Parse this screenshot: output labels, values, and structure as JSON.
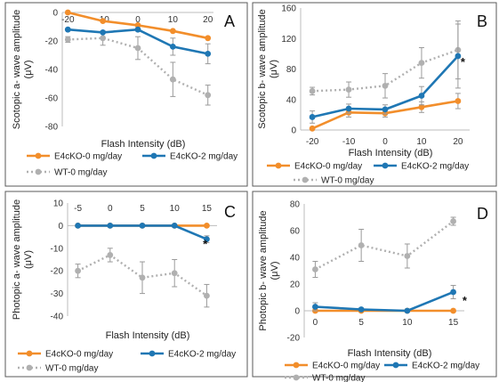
{
  "chart_data": [
    {
      "type": "line",
      "panel": "A",
      "xlabel": "Flash Intensity (dB)",
      "ylabel": "Scotopic a- wave amplitude (μV)",
      "x": [
        -20,
        -10,
        0,
        10,
        20
      ],
      "ylim": [
        -80,
        0
      ],
      "yticks": [
        0,
        -20,
        -40,
        -60,
        -80
      ],
      "xticks": [
        "-20",
        "-10",
        "0",
        "10",
        "20"
      ],
      "series": [
        {
          "name": "E4cKO-0 mg/day",
          "color": "#f28e2b",
          "style": "solid",
          "values": [
            0,
            -6,
            -9,
            -13,
            -18
          ],
          "errors": [
            0,
            0,
            0,
            0,
            0
          ]
        },
        {
          "name": "E4cKO-2 mg/day",
          "color": "#1f77b4",
          "style": "solid",
          "values": [
            -12,
            -14,
            -12,
            -24,
            -29
          ],
          "errors": [
            0,
            0,
            0,
            6,
            7
          ]
        },
        {
          "name": "WT-0 mg/day",
          "color": "#b0b0b0",
          "style": "dotted",
          "values": [
            -19,
            -18,
            -25,
            -47,
            -58
          ],
          "errors": [
            2,
            5,
            8,
            12,
            7
          ]
        }
      ],
      "markers": [],
      "legend": "bottom"
    },
    {
      "type": "line",
      "panel": "B",
      "xlabel": "Flash Intensity (dB)",
      "ylabel": "Scotopic b- wave amplitude (μV)",
      "x": [
        -20,
        -10,
        0,
        10,
        20
      ],
      "ylim": [
        0,
        160
      ],
      "yticks": [
        0,
        40,
        80,
        120,
        160
      ],
      "xticks": [
        "-20",
        "-10",
        "0",
        "10",
        "20"
      ],
      "series": [
        {
          "name": "E4cKO-0 mg/day",
          "color": "#f28e2b",
          "style": "solid",
          "values": [
            2,
            23,
            22,
            30,
            38
          ],
          "errors": [
            0,
            6,
            5,
            7,
            10
          ]
        },
        {
          "name": "E4cKO-2 mg/day",
          "color": "#1f77b4",
          "style": "solid",
          "values": [
            17,
            28,
            27,
            45,
            97
          ],
          "errors": [
            8,
            6,
            6,
            12,
            42
          ]
        },
        {
          "name": "WT-0 mg/day",
          "color": "#b0b0b0",
          "style": "dotted",
          "values": [
            51,
            53,
            58,
            88,
            105
          ],
          "errors": [
            5,
            10,
            16,
            20,
            38
          ]
        }
      ],
      "markers": [
        {
          "text": "*",
          "x": 20,
          "y": 90
        }
      ],
      "legend": "bottom"
    },
    {
      "type": "line",
      "panel": "C",
      "xlabel": "Flash Intensity (dB)",
      "ylabel": "Photopic a- wave amplitude (μV)",
      "x": [
        -5,
        0,
        5,
        10,
        15
      ],
      "ylim": [
        -40,
        10
      ],
      "yticks": [
        10,
        0,
        -10,
        -20,
        -30,
        -40
      ],
      "xticks": [
        "-5",
        "0",
        "5",
        "10",
        "15"
      ],
      "series": [
        {
          "name": "E4cKO-0 mg/day",
          "color": "#f28e2b",
          "style": "solid",
          "values": [
            0,
            0,
            0,
            0,
            0
          ],
          "errors": [
            0,
            0,
            0,
            0,
            0
          ]
        },
        {
          "name": "E4cKO-2 mg/day",
          "color": "#1f77b4",
          "style": "solid",
          "values": [
            0,
            0,
            0,
            0,
            -6
          ],
          "errors": [
            0,
            0,
            0,
            0,
            1.5
          ]
        },
        {
          "name": "WT-0 mg/day",
          "color": "#b0b0b0",
          "style": "dotted",
          "values": [
            -20,
            -13,
            -23,
            -21,
            -31
          ],
          "errors": [
            3,
            3,
            7,
            6,
            5
          ]
        }
      ],
      "markers": [
        {
          "text": "*",
          "x": 14,
          "y": -8
        }
      ],
      "legend": "bottom"
    },
    {
      "type": "line",
      "panel": "D",
      "xlabel": "Flash Intensity (dB)",
      "ylabel": "Photopic b- wave amplitude (μV)",
      "x": [
        0,
        5,
        10,
        15
      ],
      "ylim": [
        -20,
        80
      ],
      "yticks": [
        80,
        60,
        40,
        20,
        0,
        -20
      ],
      "xticks": [
        "0",
        "5",
        "10",
        "15"
      ],
      "series": [
        {
          "name": "E4cKO-0 mg/day",
          "color": "#f28e2b",
          "style": "solid",
          "values": [
            0,
            0,
            0,
            0
          ],
          "errors": [
            0,
            0,
            0,
            0
          ]
        },
        {
          "name": "E4cKO-2 mg/day",
          "color": "#1f77b4",
          "style": "solid",
          "values": [
            3,
            1,
            0,
            14
          ],
          "errors": [
            3,
            1,
            0,
            5
          ]
        },
        {
          "name": "WT-0 mg/day",
          "color": "#b0b0b0",
          "style": "dotted",
          "values": [
            31,
            49,
            41,
            67
          ],
          "errors": [
            6,
            12,
            9,
            3
          ]
        }
      ],
      "markers": [
        {
          "text": "*",
          "x": 15.7,
          "y": 8
        }
      ],
      "legend": "bottom"
    }
  ]
}
